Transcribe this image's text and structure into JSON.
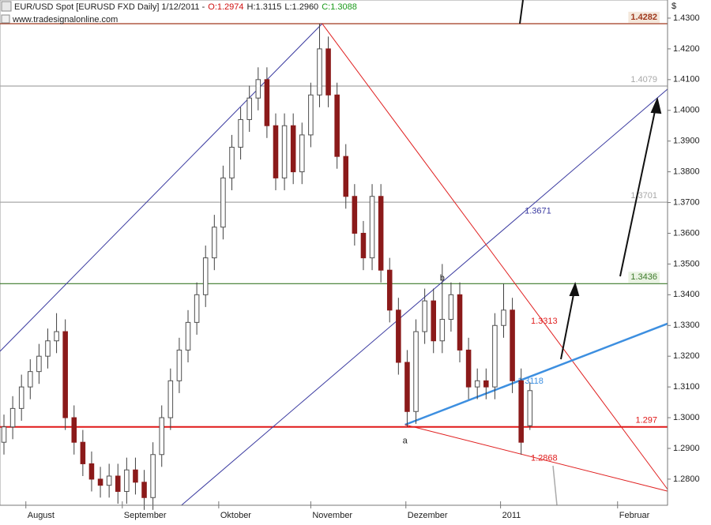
{
  "chart_data": {
    "type": "candlestick",
    "title": "EUR/USD Spot [EURUSD FXD  Daily] 1/12/2011 -",
    "ohlc_labels": [
      {
        "text": "O:1.2974",
        "color": "#d01010"
      },
      {
        "text": "H:1.3115",
        "color": "#202020"
      },
      {
        "text": "L:1.2960",
        "color": "#202020"
      },
      {
        "text": "C:1.3088",
        "color": "#1a9a1a"
      }
    ],
    "source": "www.tradesignalonline.com",
    "y_axis_unit": "$",
    "x": [
      0,
      2,
      4,
      6,
      8,
      10,
      12,
      14,
      16,
      18,
      20,
      22,
      24,
      26,
      28,
      30,
      32,
      34,
      36,
      38,
      40,
      42,
      44,
      46,
      48,
      50,
      52,
      54,
      56,
      58,
      60,
      62,
      64,
      66,
      68,
      70,
      72,
      74,
      76,
      78,
      80,
      82,
      84,
      86,
      88,
      90,
      92,
      94,
      96,
      98,
      100,
      102,
      104,
      106,
      108,
      110,
      112,
      114,
      116,
      118,
      120
    ],
    "open": [
      1.292,
      1.297,
      1.303,
      1.31,
      1.315,
      1.32,
      1.325,
      1.328,
      1.3,
      1.292,
      1.285,
      1.28,
      1.278,
      1.281,
      1.276,
      1.283,
      1.279,
      1.274,
      1.288,
      1.3,
      1.312,
      1.322,
      1.331,
      1.34,
      1.352,
      1.362,
      1.378,
      1.388,
      1.397,
      1.404,
      1.41,
      1.395,
      1.378,
      1.395,
      1.38,
      1.392,
      1.405,
      1.42,
      1.405,
      1.385,
      1.372,
      1.36,
      1.352,
      1.372,
      1.348,
      1.335,
      1.318,
      1.302,
      1.328,
      1.338,
      1.325,
      1.332,
      1.34,
      1.322,
      1.31,
      1.312,
      1.31,
      1.33,
      1.335,
      1.312,
      1.2974
    ],
    "high": [
      1.301,
      1.307,
      1.314,
      1.319,
      1.324,
      1.329,
      1.334,
      1.332,
      1.304,
      1.296,
      1.289,
      1.284,
      1.285,
      1.285,
      1.287,
      1.287,
      1.283,
      1.292,
      1.304,
      1.316,
      1.326,
      1.335,
      1.344,
      1.356,
      1.366,
      1.382,
      1.392,
      1.401,
      1.408,
      1.414,
      1.414,
      1.399,
      1.399,
      1.399,
      1.396,
      1.409,
      1.4282,
      1.424,
      1.409,
      1.389,
      1.376,
      1.364,
      1.376,
      1.376,
      1.352,
      1.339,
      1.322,
      1.332,
      1.342,
      1.342,
      1.35,
      1.344,
      1.344,
      1.326,
      1.316,
      1.316,
      1.334,
      1.3436,
      1.339,
      1.316,
      1.3115
    ],
    "low": [
      1.288,
      1.293,
      1.299,
      1.306,
      1.311,
      1.316,
      1.321,
      1.296,
      1.288,
      1.281,
      1.276,
      1.274,
      1.274,
      1.272,
      1.272,
      1.275,
      1.27,
      1.27,
      1.284,
      1.296,
      1.308,
      1.318,
      1.327,
      1.336,
      1.348,
      1.358,
      1.374,
      1.384,
      1.393,
      1.4,
      1.391,
      1.374,
      1.374,
      1.376,
      1.376,
      1.388,
      1.401,
      1.401,
      1.381,
      1.368,
      1.356,
      1.348,
      1.348,
      1.344,
      1.331,
      1.314,
      1.297,
      1.298,
      1.324,
      1.321,
      1.321,
      1.328,
      1.318,
      1.306,
      1.306,
      1.306,
      1.306,
      1.326,
      1.308,
      1.288,
      1.296
    ],
    "close": [
      1.297,
      1.303,
      1.31,
      1.315,
      1.32,
      1.325,
      1.328,
      1.3,
      1.292,
      1.285,
      1.28,
      1.278,
      1.281,
      1.276,
      1.283,
      1.279,
      1.274,
      1.288,
      1.3,
      1.312,
      1.322,
      1.331,
      1.34,
      1.352,
      1.362,
      1.378,
      1.388,
      1.397,
      1.404,
      1.41,
      1.395,
      1.378,
      1.395,
      1.38,
      1.392,
      1.405,
      1.42,
      1.405,
      1.385,
      1.372,
      1.36,
      1.352,
      1.372,
      1.348,
      1.335,
      1.318,
      1.302,
      1.328,
      1.338,
      1.325,
      1.332,
      1.34,
      1.322,
      1.31,
      1.312,
      1.31,
      1.33,
      1.335,
      1.312,
      1.292,
      1.3088
    ],
    "up_color": "#ffffff",
    "down_color": "#8b1a1a",
    "wick_color": "#404040",
    "xlim": [
      -0.9,
      151.4
    ],
    "ylim": [
      1.2715,
      1.4359
    ],
    "xticks": [
      {
        "value": 5,
        "label": "August"
      },
      {
        "value": 27,
        "label": "September"
      },
      {
        "value": 49,
        "label": "Oktober"
      },
      {
        "value": 70,
        "label": "November"
      },
      {
        "value": 91.7,
        "label": "Dezember"
      },
      {
        "value": 113.3,
        "label": "2011"
      },
      {
        "value": 140,
        "label": "Februar"
      }
    ],
    "yticks": [
      {
        "value": 1.28,
        "label": "1.2800"
      },
      {
        "value": 1.29,
        "label": "1.2900"
      },
      {
        "value": 1.3,
        "label": "1.3000"
      },
      {
        "value": 1.31,
        "label": "1.3100"
      },
      {
        "value": 1.32,
        "label": "1.3200"
      },
      {
        "value": 1.33,
        "label": "1.3300"
      },
      {
        "value": 1.34,
        "label": "1.3400"
      },
      {
        "value": 1.35,
        "label": "1.3500"
      },
      {
        "value": 1.36,
        "label": "1.3600"
      },
      {
        "value": 1.37,
        "label": "1.3700"
      },
      {
        "value": 1.38,
        "label": "1.3800"
      },
      {
        "value": 1.39,
        "label": "1.3900"
      },
      {
        "value": 1.4,
        "label": "1.4000"
      },
      {
        "value": 1.41,
        "label": "1.4100"
      },
      {
        "value": 1.42,
        "label": "1.4200"
      },
      {
        "value": 1.43,
        "label": "1.4300"
      }
    ],
    "levels": [
      {
        "value": 1.4282,
        "color": "#a0391e"
      },
      {
        "value": 1.4079,
        "color": "#a8a8a8"
      },
      {
        "value": 1.3701,
        "color": "#a8a8a8"
      },
      {
        "value": 1.3436,
        "color": "#3c7a2a"
      },
      {
        "value": 1.297,
        "color": "#e01818"
      }
    ],
    "trendlines": [
      {
        "x": [
          -0.9,
          72.6
        ],
        "y": [
          1.3216,
          1.4282
        ],
        "color": "#3a3aa0"
      },
      {
        "x": [
          40.5,
          151.4
        ],
        "y": [
          1.2715,
          1.4069
        ],
        "color": "#3a3aa0",
        "label": 1.3671
      },
      {
        "x": [
          72.6,
          151.4
        ],
        "y": [
          1.4282,
          1.2767
        ],
        "color": "#e02020",
        "label": 1.3313
      },
      {
        "x": [
          91.5,
          151.4
        ],
        "y": [
          1.2977,
          1.3306
        ],
        "color": "#3d8fe0",
        "label": 1.3118
      },
      {
        "x": [
          91.5,
          151.4
        ],
        "y": [
          1.2977,
          1.2761
        ],
        "color": "#e02020",
        "label": 1.2868
      }
    ],
    "annotations": [
      {
        "text": "a",
        "x": 91.5,
        "y": 1.297
      },
      {
        "text": "b",
        "x": 100,
        "y": 1.35
      }
    ]
  }
}
